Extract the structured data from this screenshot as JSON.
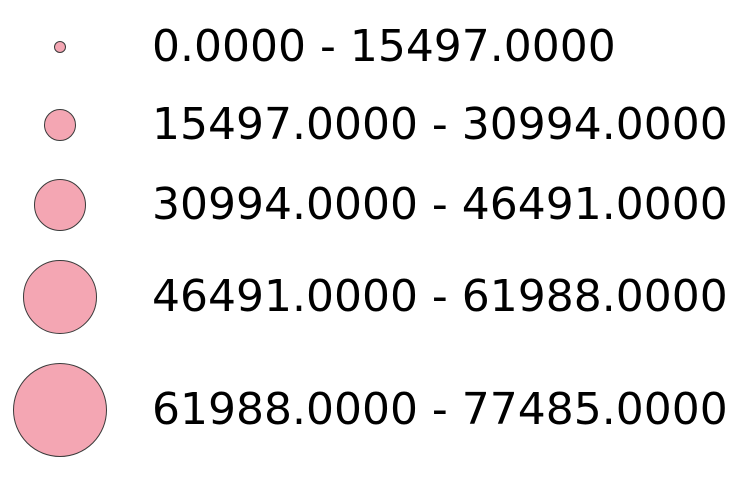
{
  "legend": {
    "symbol_color": "#f4a6b3",
    "symbol_outline_color": "#3a3a3a",
    "classes": [
      {
        "min": "0.0000",
        "max": "15497.0000",
        "separator": " - "
      },
      {
        "min": "15497.0000",
        "max": "30994.0000",
        "separator": " - "
      },
      {
        "min": "30994.0000",
        "max": "46491.0000",
        "separator": " - "
      },
      {
        "min": "46491.0000",
        "max": "61988.0000",
        "separator": " - "
      },
      {
        "min": "61988.0000",
        "max": "77485.0000",
        "separator": " - "
      }
    ]
  }
}
